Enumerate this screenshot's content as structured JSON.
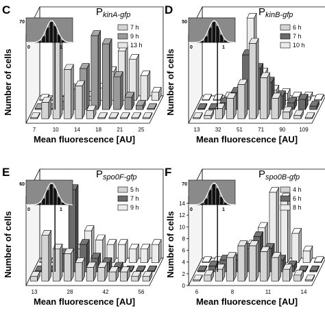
{
  "chart_data": [
    {
      "panel": "C",
      "type": "bar",
      "title_main": "P",
      "title_sub": "kinA-gfp",
      "xlabel": "Mean fluorescence [AU]",
      "ylabel": "Number of cells",
      "x_ticks": [
        "7",
        "10",
        "14",
        "18",
        "21",
        "25"
      ],
      "inset": {
        "y_top": "70",
        "x_left": "0",
        "x_right": "1"
      },
      "series": [
        {
          "name": "7 h",
          "color": "#d4d4d4",
          "values": [
            0,
            4,
            20,
            12,
            8,
            2,
            0,
            0,
            0,
            0,
            0
          ]
        },
        {
          "name": "9 h",
          "color": "#9a9a9a",
          "values": [
            0,
            0,
            2,
            5,
            10,
            18,
            16,
            8,
            3,
            1,
            0
          ]
        },
        {
          "name": "13 h",
          "color": "#e6e6e6",
          "values": [
            0,
            0,
            0,
            0,
            1,
            3,
            7,
            12,
            10,
            6,
            2
          ]
        }
      ]
    },
    {
      "panel": "D",
      "type": "bar",
      "title_main": "P",
      "title_sub": "kinB-gfp",
      "xlabel": "Mean fluorescence [AU]",
      "ylabel": "Number of cells",
      "x_ticks": [
        "13",
        "32",
        "51",
        "71",
        "90",
        "109"
      ],
      "inset": {
        "y_top": "50",
        "x_left": "0",
        "x_right": "1"
      },
      "series": [
        {
          "name": "6 h",
          "color": "#d4d4d4",
          "values": [
            0,
            1,
            3,
            6,
            10,
            22,
            12,
            6,
            2,
            1,
            0
          ]
        },
        {
          "name": "7 h",
          "color": "#6a6a6a",
          "values": [
            0,
            0,
            2,
            5,
            16,
            12,
            8,
            4,
            2,
            3,
            1
          ]
        },
        {
          "name": "10 h",
          "color": "#ececec",
          "values": [
            0,
            0,
            1,
            3,
            24,
            8,
            3,
            2,
            1,
            1,
            0
          ]
        }
      ]
    },
    {
      "panel": "E",
      "type": "bar",
      "title_main": "P",
      "title_sub": "spo0F-gfp",
      "xlabel": "Mean fluorescence [AU]",
      "ylabel": "Number of cells",
      "x_ticks": [
        "13",
        "28",
        "42",
        "56"
      ],
      "inset": {
        "y_top": "60",
        "x_left": "0",
        "x_right": "1"
      },
      "series": [
        {
          "name": "5 h",
          "color": "#d4d4d4",
          "values": [
            1,
            10,
            7,
            6,
            4,
            3,
            3,
            2,
            2,
            1,
            1
          ]
        },
        {
          "name": "7 h",
          "color": "#6a6a6a",
          "values": [
            0,
            0,
            4,
            18,
            6,
            3,
            2,
            1,
            0,
            0,
            0
          ]
        },
        {
          "name": "9 h",
          "color": "#ececec",
          "values": [
            0,
            0,
            1,
            3,
            7,
            5,
            4,
            4,
            3,
            3,
            4
          ]
        }
      ]
    },
    {
      "panel": "F",
      "type": "bar",
      "title_main": "P",
      "title_sub": "spo0B-gfp",
      "xlabel": "Mean fluorescence [AU]",
      "ylabel": "Number of cells",
      "y_ticks": [
        "0",
        "2",
        "4",
        "6",
        "8",
        "10",
        "12",
        "14"
      ],
      "ylim": [
        0,
        14
      ],
      "x_ticks": [
        "6",
        "8",
        "11",
        "14"
      ],
      "inset": {
        "y_top": "70",
        "x_left": "0",
        "x_right": "1"
      },
      "series": [
        {
          "name": "4 h",
          "color": "#d4d4d4",
          "values": [
            0,
            1,
            2,
            4,
            6,
            6,
            5,
            4,
            2,
            1,
            0
          ]
        },
        {
          "name": "6 h",
          "color": "#6a6a6a",
          "values": [
            0,
            1,
            2,
            2,
            4,
            6,
            4,
            2,
            1,
            0,
            0
          ]
        },
        {
          "name": "8 h",
          "color": "#ececec",
          "values": [
            0,
            0,
            0,
            1,
            3,
            6,
            12,
            11,
            5,
            2,
            0
          ]
        }
      ]
    }
  ]
}
